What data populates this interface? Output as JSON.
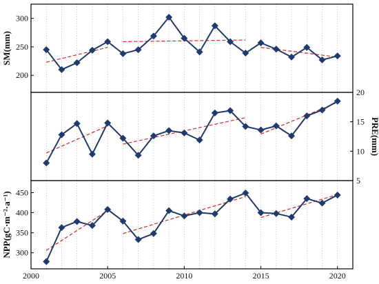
{
  "colors": {
    "series": "#1f3b6e",
    "trend": "#d9261c",
    "grid": "#bbbbbb",
    "frame": "#000000"
  },
  "chart_data": [
    {
      "type": "line",
      "panel": "top",
      "x": [
        2001,
        2002,
        2003,
        2004,
        2005,
        2006,
        2007,
        2008,
        2009,
        2010,
        2011,
        2012,
        2013,
        2014,
        2015,
        2016,
        2017,
        2018,
        2019,
        2020
      ],
      "xlim": [
        2000,
        2021
      ],
      "x_ticks": [
        2000,
        2005,
        2010,
        2015,
        2020
      ],
      "ylabel": "SM(mm)",
      "y_axis_side": "left",
      "ylim": [
        170,
        325
      ],
      "y_ticks": [
        200,
        250,
        300
      ],
      "series": [
        {
          "values": [
            245,
            210,
            222,
            244,
            259,
            238,
            245,
            269,
            302,
            265,
            241,
            287,
            259,
            239,
            257,
            246,
            232,
            249,
            227,
            234
          ],
          "marker": "diamond",
          "trend_segments": [
            {
              "from": [
                2001,
                223
              ],
              "to": [
                2005,
                249
              ]
            },
            {
              "from": [
                2006,
                259
              ],
              "to": [
                2014,
                262
              ]
            },
            {
              "from": [
                2015,
                249
              ],
              "to": [
                2020,
                232
              ]
            }
          ]
        }
      ],
      "grid": "vertical",
      "legend": "none"
    },
    {
      "type": "line",
      "panel": "middle",
      "x": [
        2001,
        2002,
        2003,
        2004,
        2005,
        2006,
        2007,
        2008,
        2009,
        2010,
        2011,
        2012,
        2013,
        2014,
        2015,
        2016,
        2017,
        2018,
        2019,
        2020
      ],
      "xlim": [
        2000,
        2021
      ],
      "x_ticks": [
        2000,
        2005,
        2010,
        2015,
        2020
      ],
      "ylabel": "PRE(mm)",
      "y_axis_side": "right",
      "ylim": [
        5,
        20
      ],
      "y_ticks": [
        5,
        10,
        15,
        20
      ],
      "series": [
        {
          "values": [
            8.0,
            12.8,
            14.7,
            9.5,
            14.8,
            12.2,
            9.3,
            12.6,
            13.5,
            13.1,
            11.9,
            16.5,
            16.9,
            14.2,
            13.6,
            14.3,
            12.6,
            16.0,
            17.0,
            18.5
          ],
          "marker": "diamond",
          "trend_segments": [
            {
              "from": [
                2001,
                9.7
              ],
              "to": [
                2005,
                14.3
              ]
            },
            {
              "from": [
                2006,
                11.2
              ],
              "to": [
                2014,
                15.7
              ]
            },
            {
              "from": [
                2015,
                12.9
              ],
              "to": [
                2020,
                18.3
              ]
            }
          ]
        }
      ],
      "grid": "vertical",
      "legend": "none"
    },
    {
      "type": "line",
      "panel": "bottom",
      "x": [
        2001,
        2002,
        2003,
        2004,
        2005,
        2006,
        2007,
        2008,
        2009,
        2010,
        2011,
        2012,
        2013,
        2014,
        2015,
        2016,
        2017,
        2018,
        2019,
        2020
      ],
      "xlim": [
        2000,
        2021
      ],
      "x_ticks": [
        2000,
        2005,
        2010,
        2015,
        2020
      ],
      "ylabel": "NPP(gC·m⁻²·a⁻¹)",
      "y_axis_side": "left",
      "ylim": [
        260,
        480
      ],
      "y_ticks": [
        300,
        350,
        400,
        450
      ],
      "series": [
        {
          "values": [
            278,
            363,
            378,
            368,
            408,
            379,
            333,
            348,
            405,
            392,
            400,
            397,
            434,
            449,
            400,
            398,
            389,
            435,
            424,
            444
          ],
          "marker": "diamond",
          "trend_segments": [
            {
              "from": [
                2001,
                306
              ],
              "to": [
                2005,
                405
              ]
            },
            {
              "from": [
                2006,
                348
              ],
              "to": [
                2014,
                440
              ]
            },
            {
              "from": [
                2015,
                388
              ],
              "to": [
                2020,
                445
              ]
            }
          ]
        }
      ],
      "grid": "vertical",
      "legend": "none"
    }
  ]
}
